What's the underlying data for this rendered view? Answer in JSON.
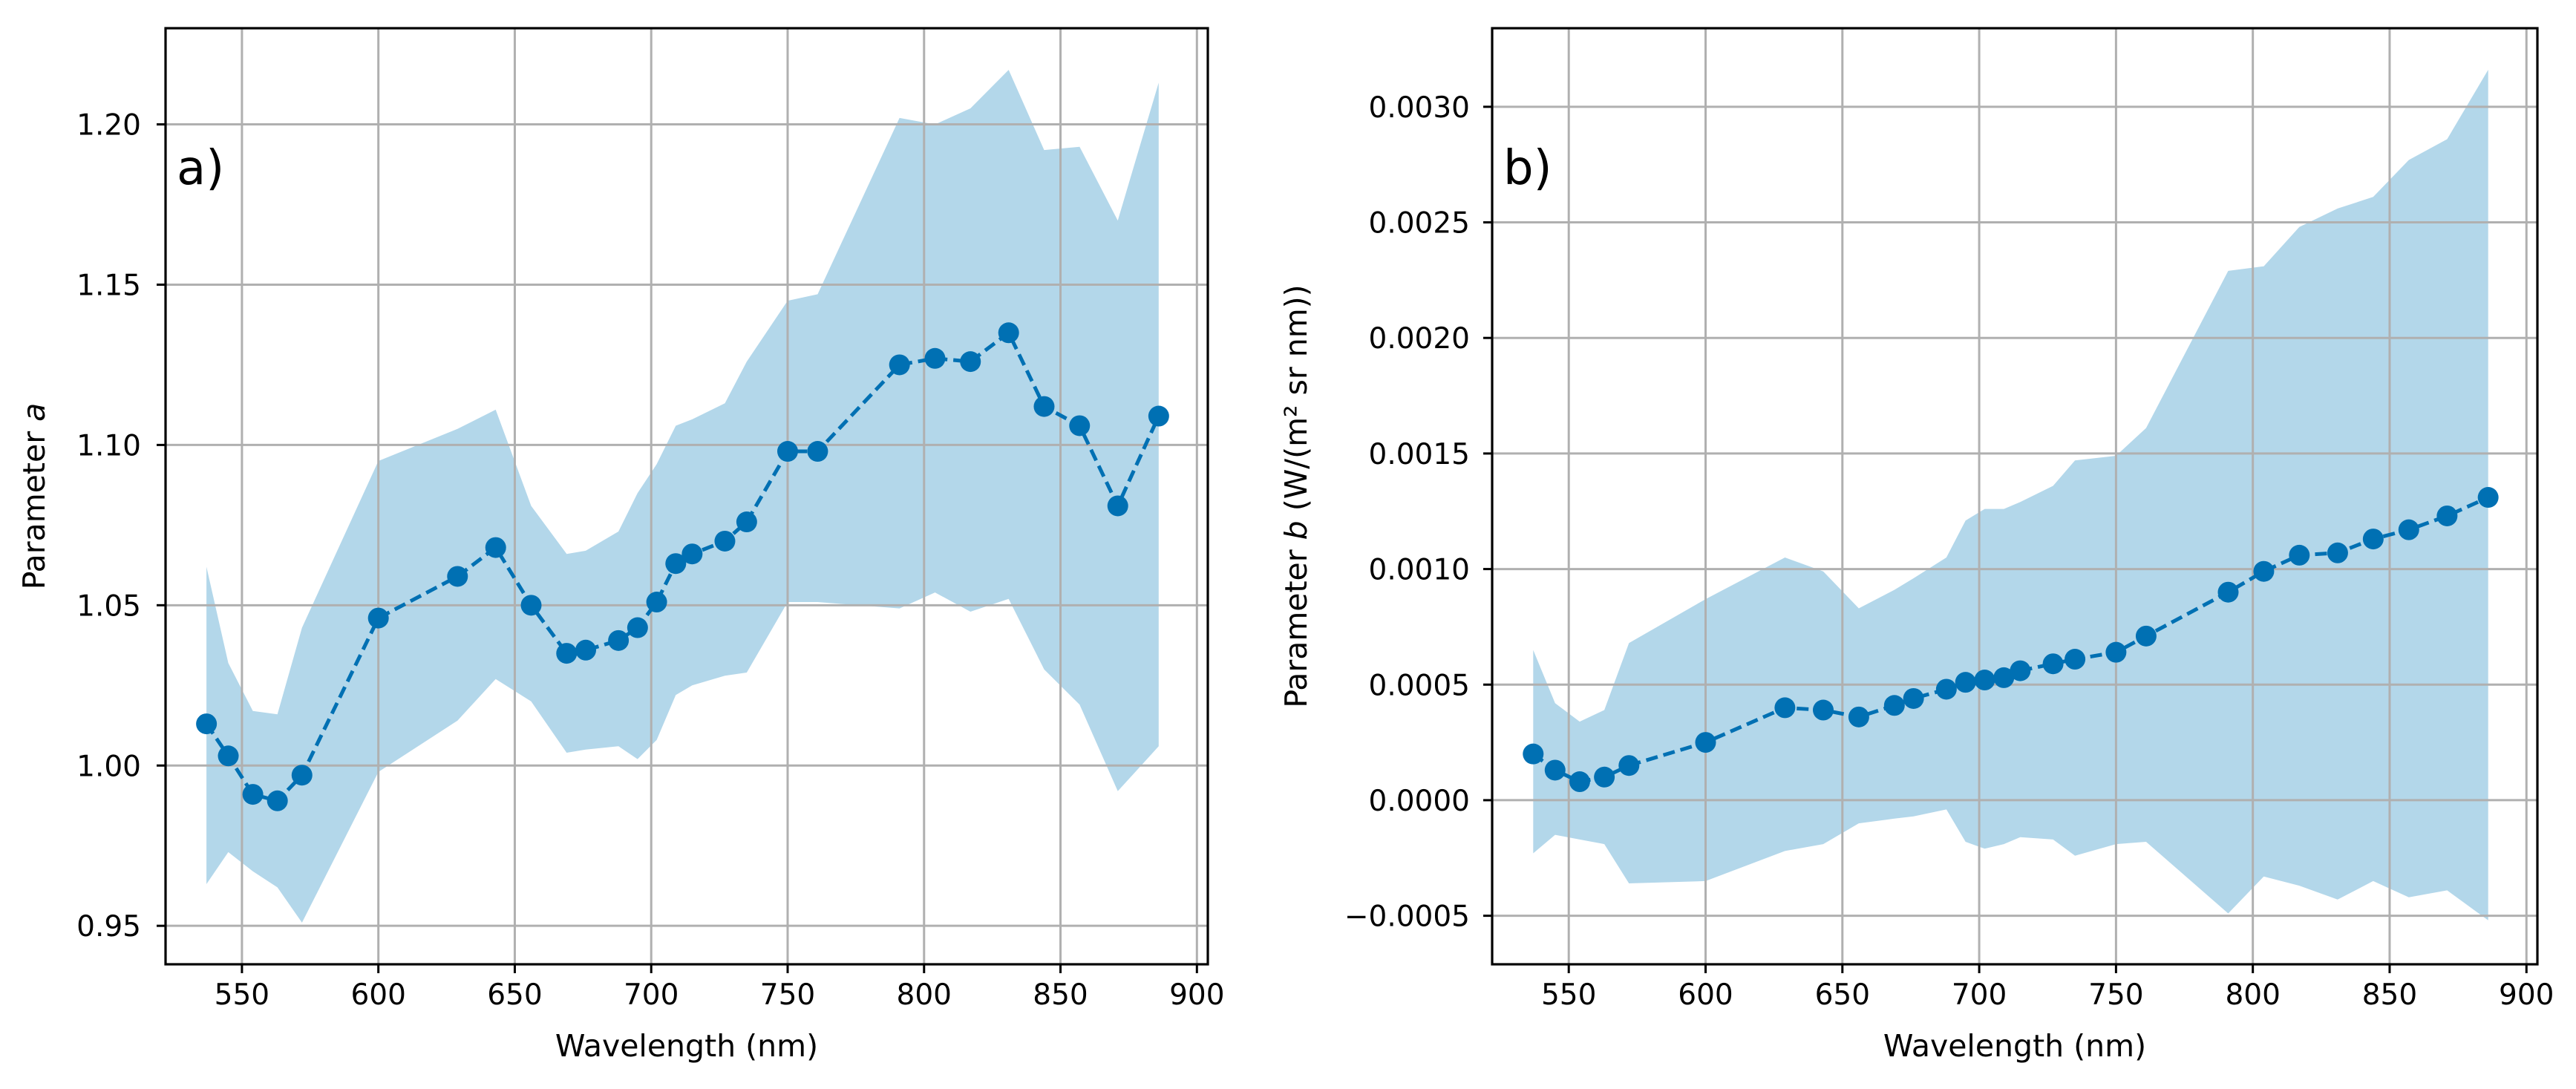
{
  "colors": {
    "band": "#b3d7ea",
    "series": "#0070b3",
    "grid": "#b0b0b0"
  },
  "chart_data": [
    {
      "type": "line",
      "panel_label": "a)",
      "xlabel": "Wavelength (nm)",
      "ylabel_prefix": "Parameter ",
      "ylabel_var": "a",
      "ylabel_suffix": "",
      "xlim": [
        522,
        904
      ],
      "ylim": [
        0.938,
        1.23
      ],
      "xticks": [
        550,
        600,
        650,
        700,
        750,
        800,
        850,
        900
      ],
      "xtick_labels": [
        "550",
        "600",
        "650",
        "700",
        "750",
        "800",
        "850",
        "900"
      ],
      "yticks": [
        0.95,
        1.0,
        1.05,
        1.1,
        1.15,
        1.2
      ],
      "ytick_labels": [
        "0.95",
        "1.00",
        "1.05",
        "1.10",
        "1.15",
        "1.20"
      ],
      "grid": true,
      "series": [
        {
          "name": "Parameter a",
          "x": [
            537,
            545,
            554,
            563,
            572,
            600,
            629,
            643,
            656,
            669,
            676,
            688,
            695,
            702,
            709,
            715,
            727,
            735,
            750,
            761,
            791,
            804,
            817,
            831,
            844,
            857,
            871,
            886
          ],
          "y": [
            1.013,
            1.003,
            0.991,
            0.989,
            0.997,
            1.046,
            1.059,
            1.068,
            1.05,
            1.035,
            1.036,
            1.039,
            1.043,
            1.051,
            1.063,
            1.066,
            1.07,
            1.076,
            1.098,
            1.098,
            1.125,
            1.127,
            1.126,
            1.135,
            1.112,
            1.106,
            1.081,
            1.109
          ]
        }
      ],
      "band": {
        "x": [
          537,
          545,
          554,
          563,
          572,
          600,
          629,
          643,
          656,
          669,
          676,
          688,
          695,
          702,
          709,
          715,
          727,
          735,
          750,
          761,
          791,
          804,
          817,
          831,
          844,
          857,
          871,
          886
        ],
        "upper": [
          1.062,
          1.032,
          1.017,
          1.016,
          1.043,
          1.095,
          1.105,
          1.111,
          1.081,
          1.066,
          1.067,
          1.073,
          1.085,
          1.094,
          1.106,
          1.108,
          1.113,
          1.126,
          1.145,
          1.147,
          1.202,
          1.2,
          1.205,
          1.217,
          1.192,
          1.193,
          1.17,
          1.213
        ],
        "lower": [
          0.963,
          0.973,
          0.967,
          0.962,
          0.951,
          0.998,
          1.014,
          1.027,
          1.02,
          1.004,
          1.005,
          1.006,
          1.002,
          1.008,
          1.022,
          1.025,
          1.028,
          1.029,
          1.051,
          1.051,
          1.049,
          1.054,
          1.048,
          1.052,
          1.03,
          1.019,
          0.992,
          1.006
        ]
      }
    },
    {
      "type": "line",
      "panel_label": "b)",
      "xlabel": "Wavelength (nm)",
      "ylabel_prefix": "Parameter ",
      "ylabel_var": "b",
      "ylabel_suffix": " (W/(m² sr nm))",
      "xlim": [
        522,
        904
      ],
      "ylim": [
        -0.00071,
        0.00334
      ],
      "xticks": [
        550,
        600,
        650,
        700,
        750,
        800,
        850,
        900
      ],
      "xtick_labels": [
        "550",
        "600",
        "650",
        "700",
        "750",
        "800",
        "850",
        "900"
      ],
      "yticks": [
        -0.0005,
        0.0,
        0.0005,
        0.001,
        0.0015,
        0.002,
        0.0025,
        0.003
      ],
      "ytick_labels": [
        "−0.0005",
        "0.0000",
        "0.0005",
        "0.0010",
        "0.0015",
        "0.0020",
        "0.0025",
        "0.0030"
      ],
      "grid": true,
      "series": [
        {
          "name": "Parameter b",
          "x": [
            537,
            545,
            554,
            563,
            572,
            600,
            629,
            643,
            656,
            669,
            676,
            688,
            695,
            702,
            709,
            715,
            727,
            735,
            750,
            761,
            791,
            804,
            817,
            831,
            844,
            857,
            871,
            886
          ],
          "y": [
            0.0002,
            0.00013,
            8e-05,
            0.0001,
            0.00015,
            0.00025,
            0.0004,
            0.00039,
            0.00036,
            0.00041,
            0.00044,
            0.00048,
            0.00051,
            0.00052,
            0.00053,
            0.00056,
            0.00059,
            0.00061,
            0.00064,
            0.00071,
            0.0009,
            0.00099,
            0.00106,
            0.00107,
            0.00113,
            0.00117,
            0.00123,
            0.00131
          ]
        }
      ],
      "band": {
        "x": [
          537,
          545,
          554,
          563,
          572,
          600,
          629,
          643,
          656,
          669,
          676,
          688,
          695,
          702,
          709,
          715,
          727,
          735,
          750,
          761,
          791,
          804,
          817,
          831,
          844,
          857,
          871,
          886
        ],
        "upper": [
          0.00065,
          0.00042,
          0.00034,
          0.00039,
          0.00068,
          0.00087,
          0.00105,
          0.00099,
          0.00083,
          0.00091,
          0.00096,
          0.00105,
          0.00121,
          0.00126,
          0.00126,
          0.00129,
          0.00136,
          0.00147,
          0.00149,
          0.00161,
          0.00229,
          0.00231,
          0.00248,
          0.00256,
          0.00261,
          0.00277,
          0.00286,
          0.00316
        ],
        "lower": [
          -0.00023,
          -0.00015,
          -0.00017,
          -0.00019,
          -0.00036,
          -0.00035,
          -0.00022,
          -0.00019,
          -0.0001,
          -8e-05,
          -7e-05,
          -4e-05,
          -0.00018,
          -0.00021,
          -0.00019,
          -0.00016,
          -0.00017,
          -0.00024,
          -0.00019,
          -0.00018,
          -0.00049,
          -0.00033,
          -0.00037,
          -0.00043,
          -0.00035,
          -0.00042,
          -0.00039,
          -0.00052
        ]
      }
    }
  ]
}
